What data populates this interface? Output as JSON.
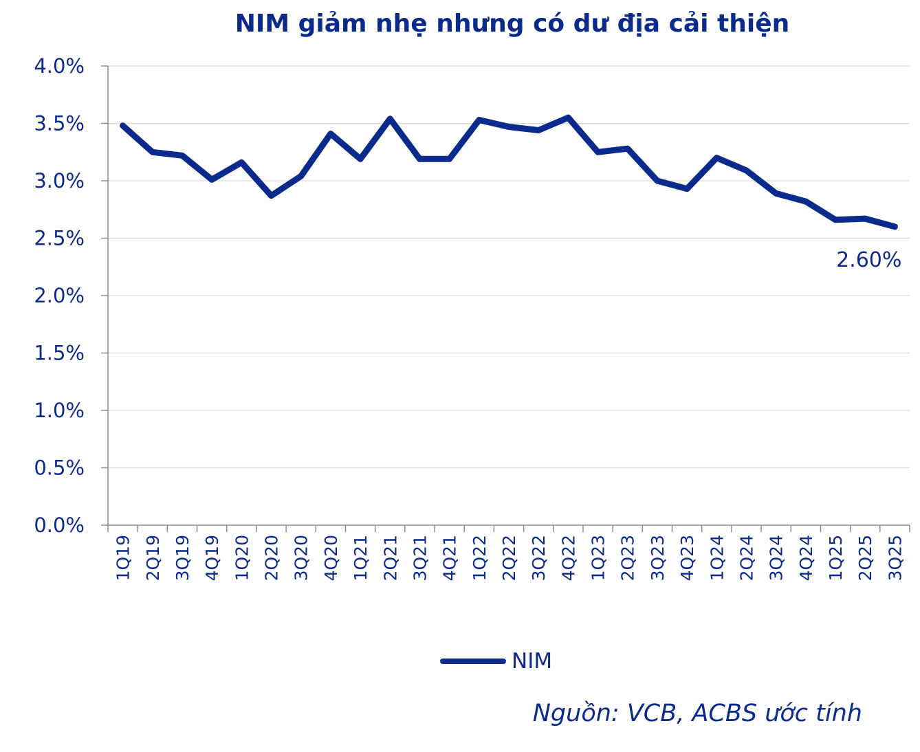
{
  "chart_data": {
    "type": "line",
    "title": "NIM giảm nhẹ nhưng có dư địa cải thiện",
    "categories": [
      "1Q19",
      "2Q19",
      "3Q19",
      "4Q19",
      "1Q20",
      "2Q20",
      "3Q20",
      "4Q20",
      "1Q21",
      "2Q21",
      "3Q21",
      "4Q21",
      "1Q22",
      "2Q22",
      "3Q22",
      "4Q22",
      "1Q23",
      "2Q23",
      "3Q23",
      "4Q23",
      "1Q24",
      "2Q24",
      "3Q24",
      "4Q24",
      "1Q25",
      "2Q25",
      "3Q25"
    ],
    "series": [
      {
        "name": "NIM",
        "values": [
          3.48,
          3.25,
          3.22,
          3.01,
          3.16,
          2.87,
          3.04,
          3.41,
          3.19,
          3.54,
          3.19,
          3.19,
          3.53,
          3.47,
          3.44,
          3.55,
          3.25,
          3.28,
          3.0,
          2.93,
          3.2,
          3.09,
          2.89,
          2.82,
          2.66,
          2.67,
          2.6
        ]
      }
    ],
    "ylim": [
      0,
      4.0
    ],
    "yticks": [
      "0.0%",
      "0.5%",
      "1.0%",
      "1.5%",
      "2.0%",
      "2.5%",
      "3.0%",
      "3.5%",
      "4.0%"
    ],
    "ytick_values": [
      0,
      0.5,
      1.0,
      1.5,
      2.0,
      2.5,
      3.0,
      3.5,
      4.0
    ],
    "grid": true,
    "legend_position": "bottom",
    "end_label": "2.60%",
    "color": "#0a2a8c",
    "source": "Nguồn: VCB, ACBS ước tính"
  }
}
